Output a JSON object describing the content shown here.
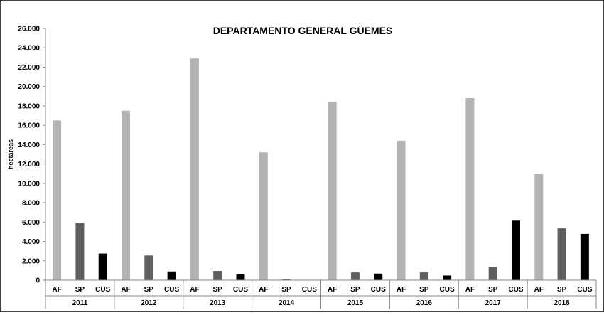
{
  "chart_data": {
    "type": "bar",
    "title": "DEPARTAMENTO GENERAL GÜEMES",
    "ylabel": "hectáreas",
    "xlabel": "",
    "ylim": [
      0,
      26000
    ],
    "yticks": [
      0,
      2000,
      4000,
      6000,
      8000,
      10000,
      12000,
      14000,
      16000,
      18000,
      20000,
      22000,
      24000,
      26000
    ],
    "ytick_labels": [
      "0",
      "2.000",
      "4.000",
      "6.000",
      "8.000",
      "10.000",
      "12.000",
      "14.000",
      "16.000",
      "18.000",
      "20.000",
      "22.000",
      "24.000",
      "26.000"
    ],
    "grid": false,
    "legend": "none",
    "subcategories": [
      "AF",
      "SP",
      "CUS"
    ],
    "subcategory_colors": [
      "#b3b3b3",
      "#5f5f5f",
      "#000000"
    ],
    "groups": [
      {
        "year": "2011",
        "values": [
          16500,
          5900,
          2750
        ]
      },
      {
        "year": "2012",
        "values": [
          17500,
          2550,
          900
        ]
      },
      {
        "year": "2013",
        "values": [
          22900,
          950,
          620
        ]
      },
      {
        "year": "2014",
        "values": [
          13200,
          100,
          0
        ]
      },
      {
        "year": "2015",
        "values": [
          18400,
          800,
          680
        ]
      },
      {
        "year": "2016",
        "values": [
          14400,
          800,
          480
        ]
      },
      {
        "year": "2017",
        "values": [
          18800,
          1350,
          6150
        ]
      },
      {
        "year": "2018",
        "values": [
          10950,
          5350,
          4780
        ]
      }
    ]
  }
}
